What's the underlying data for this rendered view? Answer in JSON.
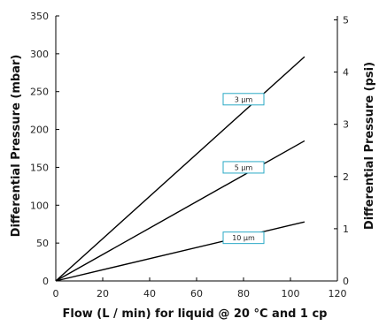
{
  "chart_data": {
    "type": "line",
    "xlabel": "Flow (L / min) for liquid @ 20 °C and 1 cp",
    "ylabel": "Differential Pressure (mbar)",
    "y2label": "Differential Pressure (psi)",
    "xlim": [
      0,
      120
    ],
    "ylim": [
      0,
      350
    ],
    "y2lim": [
      0,
      5.076
    ],
    "x_ticks": [
      0,
      20,
      40,
      60,
      80,
      100,
      120
    ],
    "y_ticks": [
      0,
      50,
      100,
      150,
      200,
      250,
      300,
      350
    ],
    "y2_ticks": [
      0,
      1,
      2,
      3,
      4,
      5
    ],
    "grid": false,
    "series": [
      {
        "name": "3 µm",
        "x": [
          0,
          106
        ],
        "y": [
          0,
          296
        ],
        "label_at": [
          80,
          240
        ],
        "color": "#000000",
        "label_border": "#29a9c6"
      },
      {
        "name": "5 µm",
        "x": [
          0,
          106
        ],
        "y": [
          0,
          185
        ],
        "label_at": [
          80,
          150
        ],
        "color": "#000000",
        "label_border": "#29a9c6"
      },
      {
        "name": "10 µm",
        "x": [
          0,
          106
        ],
        "y": [
          0,
          78
        ],
        "label_at": [
          80,
          57
        ],
        "color": "#000000",
        "label_border": "#29a9c6"
      }
    ]
  }
}
